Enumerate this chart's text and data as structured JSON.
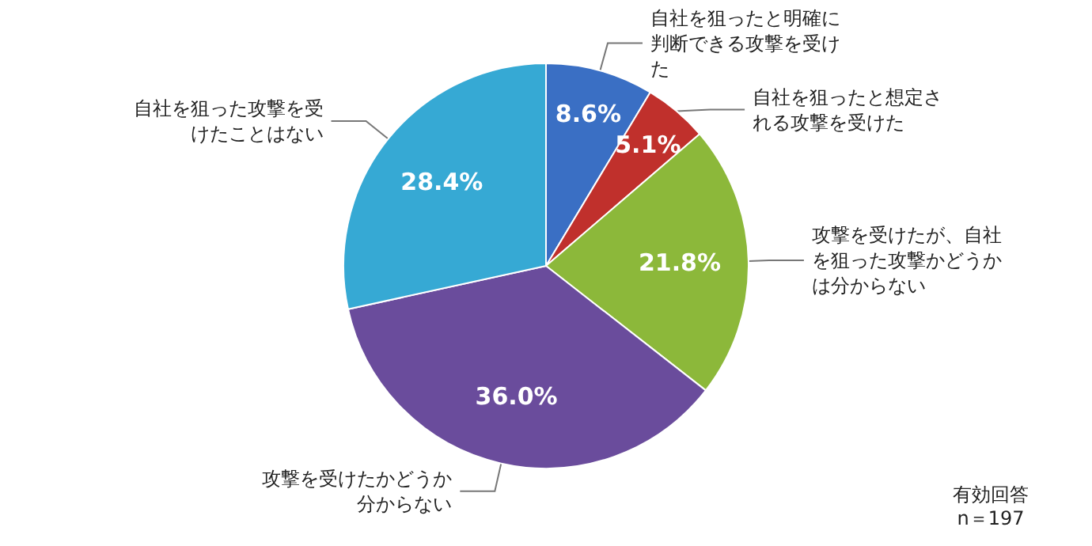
{
  "chart_data": {
    "type": "pie",
    "categories": [
      "自社を狙ったと明確に判断できる攻撃を受けた",
      "自社を狙ったと想定される攻撃を受けた",
      "攻撃を受けたが、自社を狙った攻撃かどうかは分からない",
      "攻撃を受けたかどうか分からない",
      "自社を狙った攻撃を受けたことはない"
    ],
    "values": [
      8.6,
      5.1,
      21.8,
      36.0,
      28.4
    ],
    "value_labels": [
      "8.6%",
      "5.1%",
      "21.8%",
      "36.0%",
      "28.4%"
    ],
    "colors": [
      "#3a6fc4",
      "#c0302c",
      "#8cb83a",
      "#6a4c9c",
      "#36a9d4"
    ],
    "annotations": [
      "有効回答\nn＝197"
    ],
    "legend": false
  }
}
